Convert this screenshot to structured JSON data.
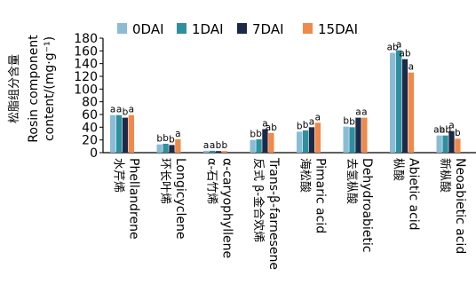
{
  "chart_data": {
    "type": "bar",
    "ylabel_cn": "松脂组分含量",
    "ylabel_en_line1": "Rosin component",
    "ylabel_en_line2": "content/(mg·g⁻¹)",
    "ylim": [
      0,
      180
    ],
    "yticks": [
      "0",
      "20",
      "40",
      "60",
      "80",
      "100",
      "120",
      "140",
      "160",
      "180"
    ],
    "legend_position": "top",
    "grid": false,
    "categories": [
      {
        "cn": "水芹烯",
        "en": "Phellandrene"
      },
      {
        "cn": "环长叶烯",
        "en": "Longicyclene"
      },
      {
        "cn": "α-石竹烯",
        "en": "α-caryophyllene"
      },
      {
        "cn": "反式 β-金合欢烯",
        "en": "Trans-β-farnesene"
      },
      {
        "cn": "海松酸",
        "en": "Pimaric acid"
      },
      {
        "cn": "去氢枞酸",
        "en": "Dehydroabietic"
      },
      {
        "cn": "枞酸",
        "en": "Abietic acid"
      },
      {
        "cn": "新枞酸",
        "en": "Neoabietic acid"
      }
    ],
    "series": [
      {
        "name": "0DAI",
        "color": "#8bbcd6",
        "values": [
          59,
          13,
          3,
          20,
          33,
          41,
          157,
          27
        ]
      },
      {
        "name": "1DAI",
        "color": "#2e8f9e",
        "values": [
          59,
          14,
          3,
          21,
          35,
          40,
          161,
          27
        ]
      },
      {
        "name": "7DAI",
        "color": "#1c2a4a",
        "values": [
          55,
          12,
          2.5,
          37,
          40,
          55,
          147,
          34
        ]
      },
      {
        "name": "15DAI",
        "color": "#f0894a",
        "values": [
          59,
          21,
          2.5,
          31,
          47,
          55,
          126,
          22
        ]
      }
    ],
    "significance": [
      [
        "a",
        "a",
        "b",
        "a"
      ],
      [
        "b",
        "b",
        "b",
        "a"
      ],
      [
        "a",
        "a",
        "b",
        "b"
      ],
      [
        "b",
        "b",
        "a",
        "ab"
      ],
      [
        "b",
        "b",
        "a",
        "a"
      ],
      [
        "b",
        "b",
        "a",
        "a"
      ],
      [
        "ab",
        "a",
        "ab",
        "a"
      ],
      [
        "ab",
        "ab",
        "a",
        "b"
      ]
    ]
  }
}
